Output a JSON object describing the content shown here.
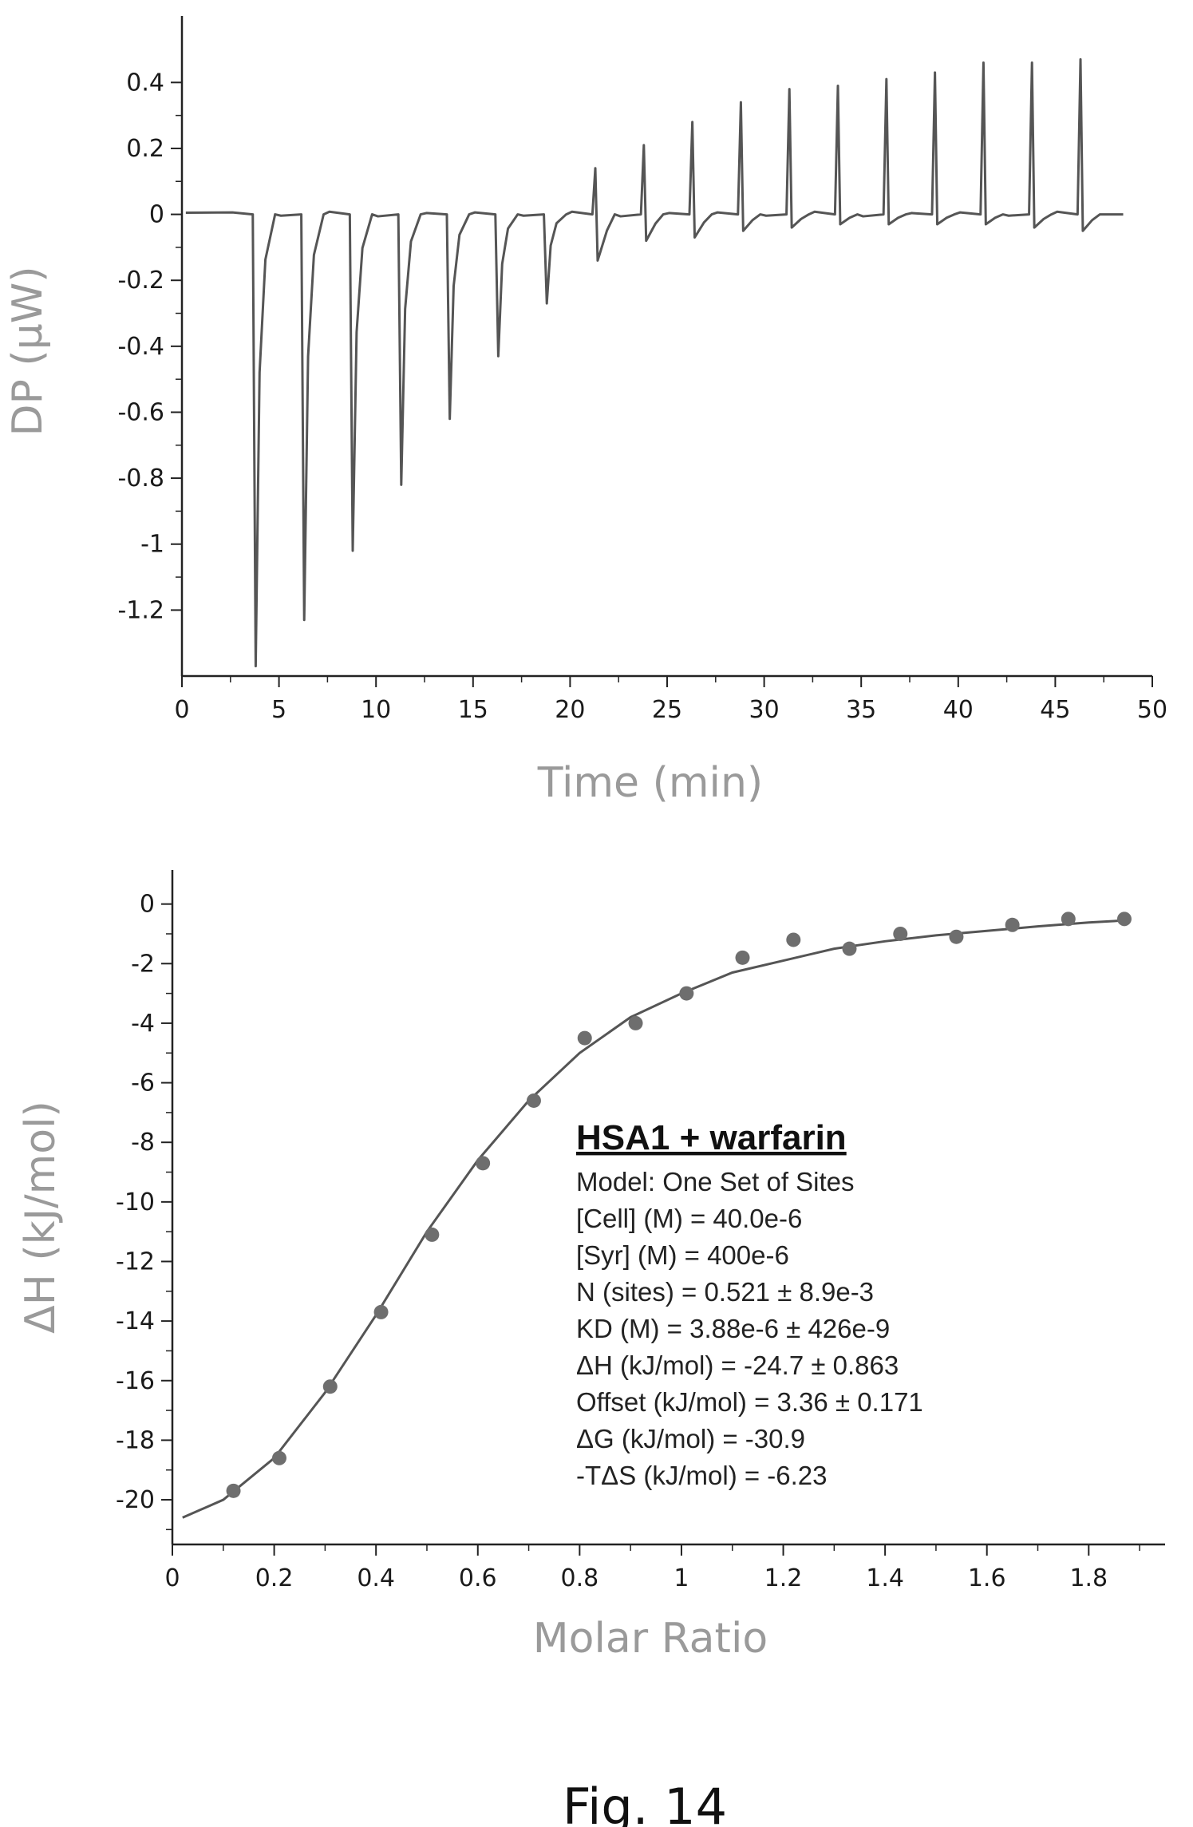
{
  "figure_caption": "Fig. 14",
  "chart_data": [
    {
      "type": "line",
      "ylabel": "DP (μW)",
      "xlabel": "Time (min)",
      "xlim": [
        0,
        50
      ],
      "ylim": [
        -1.4,
        0.5
      ],
      "x_ticks": [
        0,
        5,
        10,
        15,
        20,
        25,
        30,
        35,
        40,
        45,
        50
      ],
      "x_tick_labels": [
        "0",
        "5",
        "10",
        "15",
        "20",
        "25",
        "30",
        "35",
        "40",
        "45",
        "50"
      ],
      "y_ticks": [
        0.4,
        0.2,
        0,
        -0.2,
        -0.4,
        -0.6,
        -0.8,
        -1,
        -1.2
      ],
      "y_tick_labels": [
        "0.4",
        "0.2",
        "0",
        "-0.2",
        "-0.4",
        "-0.6",
        "-0.8",
        "-1",
        "-1.2"
      ],
      "baseline": 0,
      "trace_x_range": [
        0.2,
        48.5
      ],
      "injections": {
        "time_min": [
          3.8,
          6.3,
          8.8,
          11.3,
          13.8,
          16.3,
          18.8,
          21.3,
          23.8,
          26.3,
          28.8,
          31.3,
          33.8,
          36.3,
          38.8,
          41.3,
          43.8,
          46.3
        ],
        "peak_dp": [
          -1.37,
          -1.23,
          -1.02,
          -0.82,
          -0.62,
          -0.43,
          -0.27,
          0.14,
          0.21,
          0.28,
          0.34,
          0.38,
          0.39,
          0.41,
          0.43,
          0.46,
          0.46,
          0.47
        ],
        "secondary_dp": [
          0,
          0,
          0,
          0,
          0,
          0,
          0,
          -0.14,
          -0.08,
          -0.07,
          -0.05,
          -0.04,
          -0.03,
          -0.03,
          -0.03,
          -0.03,
          -0.04,
          -0.05
        ]
      },
      "line_color": "#555555"
    },
    {
      "type": "scatter",
      "ylabel": "ΔH (kJ/mol)",
      "xlabel": "Molar Ratio",
      "xlim": [
        0,
        1.95
      ],
      "ylim": [
        -21.5,
        0.5
      ],
      "x_ticks": [
        0,
        0.2,
        0.4,
        0.6,
        0.8,
        1,
        1.2,
        1.4,
        1.6,
        1.8
      ],
      "x_tick_labels": [
        "0",
        "0.2",
        "0.4",
        "0.6",
        "0.8",
        "1",
        "1.2",
        "1.4",
        "1.6",
        "1.8"
      ],
      "y_ticks": [
        0,
        -2,
        -4,
        -6,
        -8,
        -10,
        -12,
        -14,
        -16,
        -18,
        -20
      ],
      "y_tick_labels": [
        "0",
        "-2",
        "-4",
        "-6",
        "-8",
        "-10",
        "-12",
        "-14",
        "-16",
        "-18",
        "-20"
      ],
      "points": {
        "x": [
          0.12,
          0.21,
          0.31,
          0.41,
          0.51,
          0.61,
          0.71,
          0.81,
          0.91,
          1.01,
          1.12,
          1.22,
          1.33,
          1.43,
          1.54,
          1.65,
          1.76,
          1.87
        ],
        "y": [
          -19.7,
          -18.6,
          -16.2,
          -13.7,
          -11.1,
          -8.7,
          -6.6,
          -4.5,
          -4.0,
          -3.0,
          -1.8,
          -1.2,
          -1.5,
          -1.0,
          -1.1,
          -0.7,
          -0.5,
          -0.5
        ]
      },
      "fit": {
        "x": [
          0.02,
          0.1,
          0.2,
          0.3,
          0.4,
          0.5,
          0.6,
          0.7,
          0.8,
          0.9,
          1.0,
          1.1,
          1.2,
          1.3,
          1.4,
          1.5,
          1.6,
          1.7,
          1.8,
          1.87
        ],
        "y": [
          -20.6,
          -20.0,
          -18.6,
          -16.4,
          -13.8,
          -11.0,
          -8.6,
          -6.6,
          -5.0,
          -3.8,
          -3.0,
          -2.3,
          -1.9,
          -1.5,
          -1.25,
          -1.05,
          -0.9,
          -0.75,
          -0.62,
          -0.55
        ]
      },
      "annotation": {
        "title": "HSA1 + warfarin",
        "lines": [
          "Model: One Set of Sites",
          "[Cell] (M) = 40.0e-6",
          "[Syr] (M) = 400e-6",
          "N (sites) = 0.521 ± 8.9e-3",
          "KD (M) = 3.88e-6 ± 426e-9",
          "ΔH (kJ/mol) = -24.7 ± 0.863",
          "Offset (kJ/mol) = 3.36 ± 0.171",
          "ΔG (kJ/mol) = -30.9",
          "-TΔS (kJ/mol) = -6.23"
        ]
      },
      "marker_color": "#6e6e6e",
      "line_color": "#555555"
    }
  ]
}
